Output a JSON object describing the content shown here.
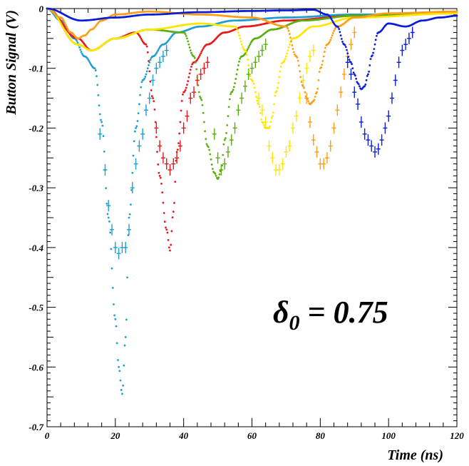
{
  "chart_data": {
    "type": "scatter",
    "xlabel": "Time (ns)",
    "ylabel": "Button Signal (V)",
    "xlim": [
      0,
      120
    ],
    "ylim": [
      -0.7,
      0
    ],
    "x_ticks": [
      0,
      20,
      40,
      60,
      80,
      100,
      120
    ],
    "x_tick_labels": [
      "0",
      "20",
      "40",
      "60",
      "80",
      "100",
      "120"
    ],
    "y_ticks": [
      0,
      -0.1,
      -0.2,
      -0.3,
      -0.4,
      -0.5,
      -0.6,
      -0.7
    ],
    "y_tick_labels": [
      "0",
      "-0.1",
      "-0.2",
      "-0.3",
      "-0.4",
      "-0.5",
      "-0.6",
      "-0.7"
    ],
    "grid": false,
    "annotation": {
      "symbol": "δ",
      "subscript": "0",
      "text": " = 0.75"
    },
    "series": [
      {
        "color": "#1f9fd0",
        "curve": {
          "x": [
            0,
            4,
            8,
            11,
            14,
            16,
            18,
            20,
            21,
            22,
            23,
            24,
            26,
            28,
            31,
            34,
            38,
            45,
            55,
            70,
            90,
            120
          ],
          "y": [
            0,
            -0.02,
            -0.05,
            -0.08,
            -0.1,
            -0.19,
            -0.35,
            -0.52,
            -0.6,
            -0.645,
            -0.55,
            -0.35,
            -0.2,
            -0.12,
            -0.08,
            -0.06,
            -0.04,
            -0.03,
            -0.02,
            -0.015,
            -0.01,
            -0.008
          ]
        },
        "points": {
          "x": [
            15.5,
            17,
            18,
            19,
            20,
            21,
            22,
            23,
            24,
            25,
            26,
            27,
            28,
            29,
            30,
            31,
            32,
            33,
            34,
            35
          ],
          "y": [
            -0.21,
            -0.27,
            -0.33,
            -0.37,
            -0.4,
            -0.41,
            -0.4,
            -0.4,
            -0.37,
            -0.3,
            -0.26,
            -0.23,
            -0.21,
            -0.17,
            -0.15,
            -0.12,
            -0.1,
            -0.09,
            -0.08,
            -0.07
          ]
        }
      },
      {
        "color": "#e8181b",
        "curve": {
          "x": [
            0,
            9,
            13,
            20,
            26,
            29,
            31,
            33,
            35,
            36,
            37,
            38,
            40,
            43,
            47,
            52,
            58,
            70,
            90,
            120
          ],
          "y": [
            0,
            -0.05,
            -0.07,
            -0.05,
            -0.04,
            -0.06,
            -0.15,
            -0.28,
            -0.37,
            -0.405,
            -0.34,
            -0.24,
            -0.14,
            -0.09,
            -0.06,
            -0.04,
            -0.03,
            -0.02,
            -0.012,
            -0.008
          ]
        },
        "points": {
          "x": [
            32,
            33,
            34,
            35,
            36,
            37,
            38,
            39,
            40,
            41,
            42,
            43,
            44,
            45,
            46,
            47
          ],
          "y": [
            -0.2,
            -0.23,
            -0.25,
            -0.26,
            -0.27,
            -0.26,
            -0.25,
            -0.23,
            -0.2,
            -0.18,
            -0.15,
            -0.14,
            -0.12,
            -0.11,
            -0.1,
            -0.09
          ]
        }
      },
      {
        "color": "#5aae10",
        "curve": {
          "x": [
            0,
            9,
            13,
            20,
            30,
            40,
            43,
            45,
            47,
            49,
            50,
            51,
            52,
            54,
            57,
            61,
            66,
            75,
            90,
            120
          ],
          "y": [
            0,
            -0.06,
            -0.07,
            -0.05,
            -0.035,
            -0.04,
            -0.08,
            -0.15,
            -0.23,
            -0.275,
            -0.285,
            -0.27,
            -0.22,
            -0.14,
            -0.08,
            -0.05,
            -0.035,
            -0.02,
            -0.012,
            -0.008
          ]
        },
        "points": {
          "x": [
            49,
            50,
            51,
            52,
            53,
            54,
            55,
            56,
            57,
            58,
            59,
            60,
            61,
            62,
            63,
            64
          ],
          "y": [
            -0.21,
            -0.25,
            -0.27,
            -0.26,
            -0.24,
            -0.22,
            -0.2,
            -0.17,
            -0.15,
            -0.13,
            -0.11,
            -0.1,
            -0.09,
            -0.08,
            -0.07,
            -0.06
          ]
        }
      },
      {
        "color": "#ffe600",
        "curve": {
          "x": [
            0,
            9,
            13,
            20,
            30,
            45,
            55,
            58,
            60,
            62,
            63,
            64,
            65,
            66,
            67,
            69,
            72,
            78,
            90,
            120
          ],
          "y": [
            0,
            -0.06,
            -0.07,
            -0.05,
            -0.035,
            -0.025,
            -0.03,
            -0.07,
            -0.12,
            -0.16,
            -0.19,
            -0.2,
            -0.2,
            -0.18,
            -0.14,
            -0.09,
            -0.05,
            -0.03,
            -0.015,
            -0.008
          ]
        },
        "points": {
          "x": [
            62,
            63,
            64,
            65,
            66,
            67,
            68,
            69,
            70,
            71,
            72,
            73,
            74,
            75,
            76,
            77,
            78
          ],
          "y": [
            -0.15,
            -0.17,
            -0.19,
            -0.23,
            -0.25,
            -0.27,
            -0.27,
            -0.26,
            -0.24,
            -0.23,
            -0.2,
            -0.18,
            -0.15,
            -0.12,
            -0.1,
            -0.08,
            -0.07
          ]
        }
      },
      {
        "color": "#ff9e16",
        "curve": {
          "x": [
            0,
            4,
            7,
            9,
            11,
            13,
            16,
            20,
            30,
            45,
            60,
            70,
            73,
            75,
            76,
            77,
            78,
            79,
            80,
            82,
            85,
            90,
            100,
            120
          ],
          "y": [
            0,
            -0.015,
            -0.04,
            -0.05,
            -0.045,
            -0.035,
            -0.02,
            -0.01,
            -0.005,
            -0.01,
            -0.015,
            -0.03,
            -0.08,
            -0.13,
            -0.15,
            -0.16,
            -0.155,
            -0.14,
            -0.1,
            -0.06,
            -0.03,
            -0.015,
            -0.008,
            -0.005
          ]
        },
        "points": {
          "x": [
            76,
            77,
            78,
            79,
            80,
            81,
            82,
            83,
            84,
            85,
            86,
            87,
            88,
            89,
            90
          ],
          "y": [
            -0.15,
            -0.19,
            -0.22,
            -0.24,
            -0.26,
            -0.26,
            -0.25,
            -0.23,
            -0.2,
            -0.17,
            -0.14,
            -0.11,
            -0.08,
            -0.06,
            -0.04
          ]
        }
      },
      {
        "color": "#0b1ed8",
        "curve": {
          "x": [
            0,
            10,
            20,
            30,
            45,
            60,
            70,
            78,
            82,
            85,
            87,
            89,
            90,
            91,
            92,
            93,
            94,
            95,
            97,
            100,
            105,
            110,
            115,
            120
          ],
          "y": [
            0,
            -0.02,
            -0.015,
            -0.01,
            -0.006,
            -0.004,
            -0.003,
            -0.002,
            -0.01,
            -0.03,
            -0.06,
            -0.09,
            -0.11,
            -0.125,
            -0.135,
            -0.13,
            -0.11,
            -0.08,
            -0.04,
            -0.025,
            -0.03,
            -0.02,
            -0.015,
            -0.012
          ]
        },
        "points": {
          "x": [
            88,
            89,
            90,
            91,
            92,
            93,
            94,
            95,
            96,
            97,
            98,
            99,
            100,
            101,
            102,
            103,
            104,
            105,
            106,
            107
          ],
          "y": [
            -0.09,
            -0.11,
            -0.14,
            -0.16,
            -0.19,
            -0.21,
            -0.22,
            -0.23,
            -0.24,
            -0.235,
            -0.22,
            -0.2,
            -0.18,
            -0.15,
            -0.12,
            -0.09,
            -0.07,
            -0.06,
            -0.05,
            -0.04
          ]
        }
      }
    ]
  }
}
